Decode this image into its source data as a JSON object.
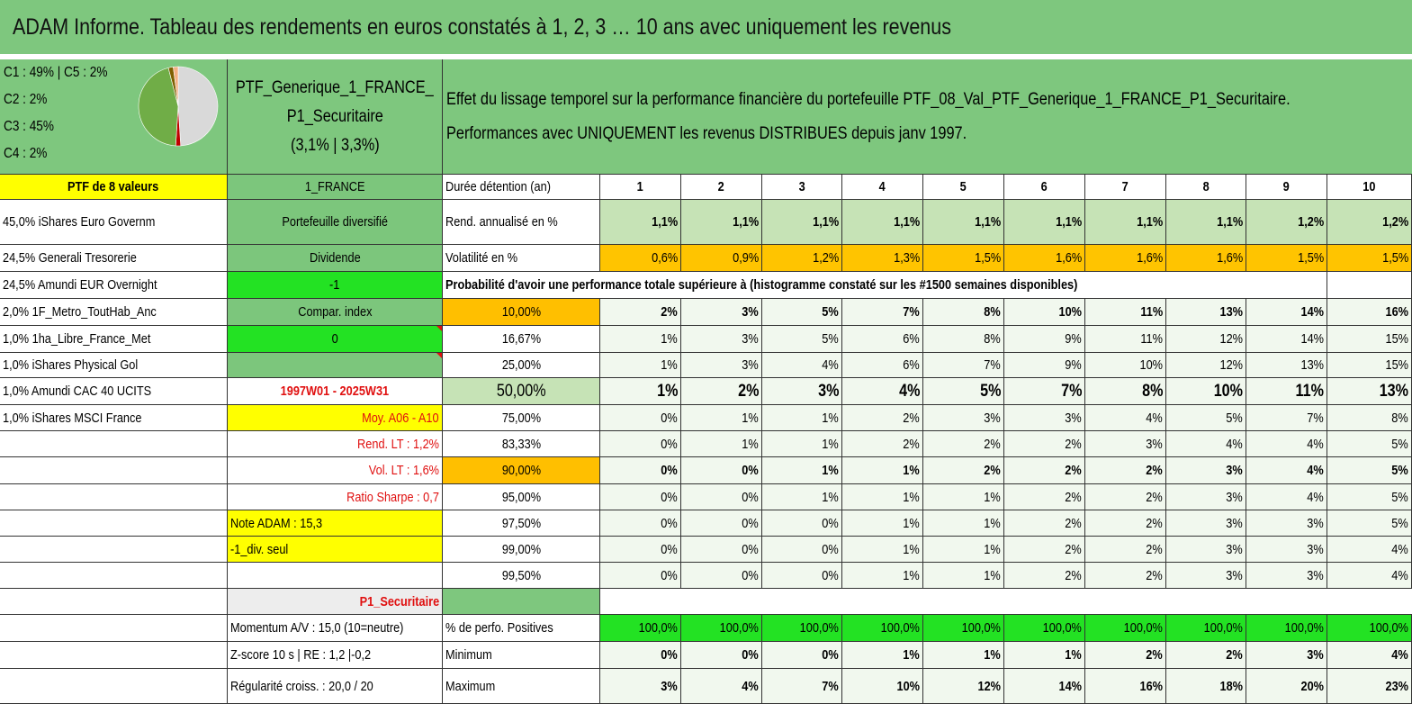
{
  "title": "ADAM Informe. Tableau des rendements en euros constatés à 1, 2, 3 … 10 ans avec uniquement les revenus",
  "allocation": [
    "C1 : 49% | C5 : 2%",
    "C2 : 2%",
    "C3 : 45%",
    "C4 : 2%"
  ],
  "pie": {
    "slices": [
      {
        "value": 49,
        "color": "#d9d9d9"
      },
      {
        "value": 2,
        "color": "#c00000"
      },
      {
        "value": 45,
        "color": "#70ad47"
      },
      {
        "value": 2,
        "color": "#7f6000"
      },
      {
        "value": 2,
        "color": "#f4b183"
      }
    ]
  },
  "portfolio": {
    "name_line1": "PTF_Generique_1_FRANCE_",
    "name_line2": "P1_Securitaire",
    "name_line3": "(3,1% | 3,3%)"
  },
  "description": {
    "line1": "Effet du lissage temporel sur la performance financière du portefeuille PTF_08_Val_PTF_Generique_1_FRANCE_P1_Securitaire.",
    "line2": "Performances avec UNIQUEMENT les revenus DISTRIBUES depuis janv 1997."
  },
  "left_col": {
    "header": "PTF de 8 valeurs",
    "holdings": [
      "45,0% iShares Euro Governm",
      "24,5% Generali Tresorerie",
      "24,5% Amundi EUR Overnight",
      "2,0% 1F_Metro_ToutHab_Anc",
      "1,0% 1ha_Libre_France_Met",
      "1,0% iShares Physical Gol",
      "1,0% Amundi CAC 40 UCITS",
      "1,0% iShares MSCI France"
    ]
  },
  "mid_col": {
    "region": "1_FRANCE",
    "diversified": "Portefeuille diversifié",
    "dividend": "Dividende",
    "dividend_value": "-1",
    "compar_index": "Compar. index",
    "compar_value": "0",
    "blank": "",
    "period": "1997W01 - 2025W31",
    "moy": "Moy. A06 - A10",
    "rend_lt": "Rend. LT : 1,2%",
    "vol_lt": "Vol. LT : 1,6%",
    "sharpe": "Ratio Sharpe : 0,7",
    "note": "Note ADAM : 15,3",
    "div_seul": "-1_div. seul",
    "profile": "P1_Securitaire",
    "momentum": "Momentum A/V : 15,0 (10=neutre)",
    "zscore": "Z-score 10 s | RE : 1,2 |-0,2",
    "regularite": "Régularité croiss. : 20,0 / 20"
  },
  "table": {
    "duration_label": "Durée détention (an)",
    "years": [
      "1",
      "2",
      "3",
      "4",
      "5",
      "6",
      "7",
      "8",
      "9",
      "10"
    ],
    "rend_label": "Rend. annualisé en %",
    "rend": [
      "1,1%",
      "1,1%",
      "1,1%",
      "1,1%",
      "1,1%",
      "1,1%",
      "1,1%",
      "1,1%",
      "1,2%",
      "1,2%"
    ],
    "vol_label": "Volatilité en %",
    "vol": [
      "0,6%",
      "0,9%",
      "1,2%",
      "1,3%",
      "1,5%",
      "1,6%",
      "1,6%",
      "1,6%",
      "1,5%",
      "1,5%"
    ],
    "prob_label": "Probabilité d'avoir une performance totale supérieure à (histogramme constaté sur les #1500 semaines disponibles)",
    "quantiles": [
      {
        "q": "10,00%",
        "v": [
          "2%",
          "3%",
          "5%",
          "7%",
          "8%",
          "10%",
          "11%",
          "13%",
          "14%",
          "16%"
        ]
      },
      {
        "q": "16,67%",
        "v": [
          "1%",
          "3%",
          "5%",
          "6%",
          "8%",
          "9%",
          "11%",
          "12%",
          "14%",
          "15%"
        ]
      },
      {
        "q": "25,00%",
        "v": [
          "1%",
          "3%",
          "4%",
          "6%",
          "7%",
          "9%",
          "10%",
          "12%",
          "13%",
          "15%"
        ]
      },
      {
        "q": "50,00%",
        "v": [
          "1%",
          "2%",
          "3%",
          "4%",
          "5%",
          "7%",
          "8%",
          "10%",
          "11%",
          "13%"
        ]
      },
      {
        "q": "75,00%",
        "v": [
          "0%",
          "1%",
          "1%",
          "2%",
          "3%",
          "3%",
          "4%",
          "5%",
          "7%",
          "8%"
        ]
      },
      {
        "q": "83,33%",
        "v": [
          "0%",
          "1%",
          "1%",
          "2%",
          "2%",
          "2%",
          "3%",
          "4%",
          "4%",
          "5%"
        ]
      },
      {
        "q": "90,00%",
        "v": [
          "0%",
          "0%",
          "1%",
          "1%",
          "2%",
          "2%",
          "2%",
          "3%",
          "4%",
          "5%"
        ]
      },
      {
        "q": "95,00%",
        "v": [
          "0%",
          "0%",
          "1%",
          "1%",
          "1%",
          "2%",
          "2%",
          "3%",
          "4%",
          "5%"
        ]
      },
      {
        "q": "97,50%",
        "v": [
          "0%",
          "0%",
          "0%",
          "1%",
          "1%",
          "2%",
          "2%",
          "3%",
          "3%",
          "5%"
        ]
      },
      {
        "q": "99,00%",
        "v": [
          "0%",
          "0%",
          "0%",
          "1%",
          "1%",
          "2%",
          "2%",
          "3%",
          "3%",
          "4%"
        ]
      },
      {
        "q": "99,50%",
        "v": [
          "0%",
          "0%",
          "0%",
          "1%",
          "1%",
          "2%",
          "2%",
          "3%",
          "3%",
          "4%"
        ]
      }
    ],
    "pos_label": "% de perfo. Positives",
    "pos": [
      "100,0%",
      "100,0%",
      "100,0%",
      "100,0%",
      "100,0%",
      "100,0%",
      "100,0%",
      "100,0%",
      "100,0%",
      "100,0%"
    ],
    "min_label": "Minimum",
    "min": [
      "0%",
      "0%",
      "0%",
      "1%",
      "1%",
      "1%",
      "2%",
      "2%",
      "3%",
      "4%"
    ],
    "max_label": "Maximum",
    "max": [
      "3%",
      "4%",
      "7%",
      "10%",
      "12%",
      "14%",
      "16%",
      "18%",
      "20%",
      "23%"
    ]
  }
}
